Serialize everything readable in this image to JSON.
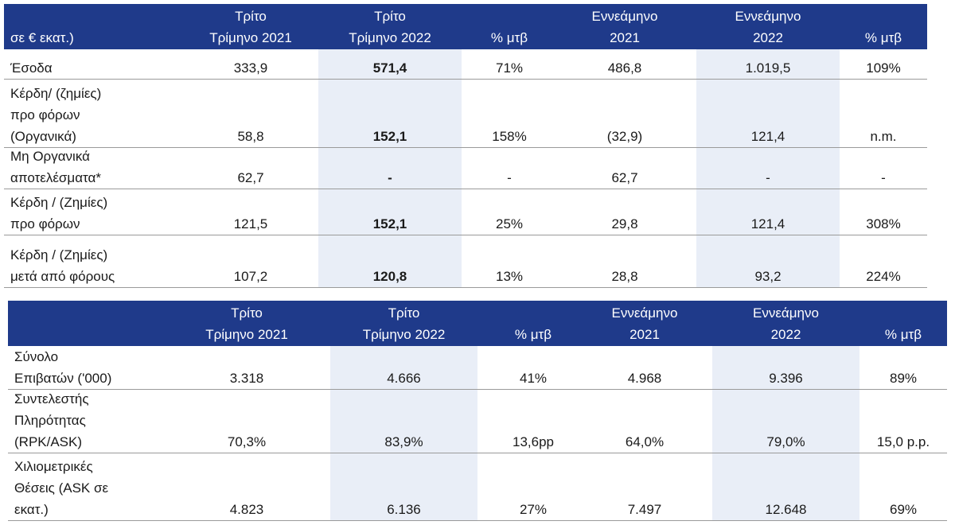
{
  "tables": [
    {
      "header": {
        "unit": "σε € εκατ.)",
        "columns": [
          "Τρίτο\nΤρίμηνο 2021",
          "Τρίτο\nΤρίμηνο 2022",
          "% μτβ",
          "Εννεάμηνο\n2021",
          "Εννεάμηνο\n2022",
          "% μτβ"
        ]
      },
      "rows": [
        {
          "label": "Έσοδα",
          "cells": [
            "333,9",
            "571,4",
            "71%",
            "486,8",
            "1.019,5",
            "109%"
          ]
        },
        {
          "label": "Κέρδη/ (ζημίες)\nπρο φόρων\n(Οργανικά)",
          "cells": [
            "58,8",
            "152,1",
            "158%",
            "(32,9)",
            "121,4",
            "n.m."
          ]
        },
        {
          "label": "Μη Οργανικά\nαποτελέσματα*",
          "cells": [
            "62,7",
            "-",
            "-",
            "62,7",
            "-",
            "-"
          ]
        },
        {
          "label": "Κέρδη / (Ζημίες)\nπρο φόρων",
          "cells": [
            "121,5",
            "152,1",
            "25%",
            "29,8",
            "121,4",
            "308%"
          ]
        },
        {
          "label": "Κέρδη / (Ζημίες)\nμετά από φόρους",
          "cells": [
            "107,2",
            "120,8",
            "13%",
            "28,8",
            "93,2",
            "224%"
          ]
        }
      ]
    },
    {
      "header": {
        "columns": [
          "Τρίτο\nΤρίμηνο 2021",
          "Τρίτο\nΤρίμηνο 2022",
          "% μτβ",
          "Εννεάμηνο\n2021",
          "Εννεάμηνο\n2022",
          "% μτβ"
        ]
      },
      "rows": [
        {
          "label": "Σύνολο\nΕπιβατών ('000)",
          "cells": [
            "3.318",
            "4.666",
            "41%",
            "4.968",
            "9.396",
            "89%"
          ]
        },
        {
          "label": "Συντελεστής\nΠληρότητας\n(RPK/ASK)",
          "cells": [
            "70,3%",
            "83,9%",
            "13,6pp",
            "64,0%",
            "79,0%",
            "15,0 p.p."
          ]
        },
        {
          "label": "Χιλιομετρικές\nΘέσεις (ASK σε\nεκατ.)",
          "cells": [
            "4.823",
            "6.136",
            "27%",
            "7.497",
            "12.648",
            "69%"
          ]
        }
      ]
    }
  ]
}
